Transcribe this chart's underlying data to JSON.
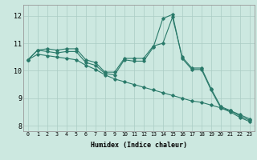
{
  "xlabel": "Humidex (Indice chaleur)",
  "ylabel": "",
  "background_color": "#cce8e0",
  "grid_color": "#aaccc4",
  "line_color": "#2a7a6a",
  "xlim": [
    -0.5,
    23.5
  ],
  "ylim": [
    7.8,
    12.4
  ],
  "xticks": [
    0,
    1,
    2,
    3,
    4,
    5,
    6,
    7,
    8,
    9,
    10,
    11,
    12,
    13,
    14,
    15,
    16,
    17,
    18,
    19,
    20,
    21,
    22,
    23
  ],
  "yticks": [
    8,
    9,
    10,
    11,
    12
  ],
  "series": [
    [
      10.4,
      10.75,
      10.8,
      10.75,
      10.8,
      10.8,
      10.4,
      10.3,
      9.95,
      9.95,
      10.45,
      10.45,
      10.45,
      10.9,
      11.0,
      11.95,
      10.5,
      10.1,
      10.1,
      9.35,
      8.7,
      8.55,
      8.35,
      8.2
    ],
    [
      10.4,
      10.75,
      10.7,
      10.65,
      10.7,
      10.7,
      10.3,
      10.2,
      9.9,
      9.85,
      10.4,
      10.35,
      10.35,
      10.85,
      11.9,
      12.05,
      10.45,
      10.05,
      10.05,
      9.3,
      8.65,
      8.5,
      8.3,
      8.15
    ],
    [
      10.4,
      10.6,
      10.55,
      10.5,
      10.45,
      10.4,
      10.2,
      10.05,
      9.85,
      9.7,
      9.6,
      9.5,
      9.4,
      9.3,
      9.2,
      9.1,
      9.0,
      8.9,
      8.85,
      8.75,
      8.65,
      8.55,
      8.4,
      8.25
    ]
  ]
}
